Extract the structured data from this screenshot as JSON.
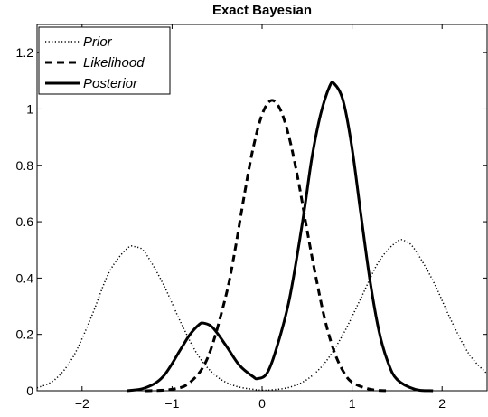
{
  "chart_data": {
    "type": "line",
    "title": "Exact Bayesian",
    "xlabel": "",
    "ylabel": "",
    "xlim": [
      -2.5,
      2.5
    ],
    "ylim": [
      0,
      1.3
    ],
    "x_ticks": [
      -2,
      -1,
      0,
      1,
      2
    ],
    "x_tick_labels": [
      "−2",
      "−1",
      "0",
      "1",
      "2"
    ],
    "y_ticks": [
      0,
      0.2,
      0.4,
      0.6,
      0.8,
      1,
      1.2
    ],
    "y_tick_labels": [
      "0",
      "0.2",
      "0.4",
      "0.6",
      "0.8",
      "1",
      "1.2"
    ],
    "grid": false,
    "legend_position": "top-left",
    "series": [
      {
        "name": "Prior",
        "style": "dotted",
        "color": "#000000",
        "points": [
          [
            -2.5,
            0.01
          ],
          [
            -2.3,
            0.04
          ],
          [
            -2.1,
            0.12
          ],
          [
            -1.9,
            0.26
          ],
          [
            -1.7,
            0.42
          ],
          [
            -1.5,
            0.505
          ],
          [
            -1.4,
            0.51
          ],
          [
            -1.3,
            0.49
          ],
          [
            -1.1,
            0.38
          ],
          [
            -0.9,
            0.24
          ],
          [
            -0.7,
            0.12
          ],
          [
            -0.5,
            0.05
          ],
          [
            -0.3,
            0.017
          ],
          [
            -0.1,
            0.005
          ],
          [
            0.0,
            0.002
          ],
          [
            0.1,
            0.003
          ],
          [
            0.3,
            0.012
          ],
          [
            0.5,
            0.04
          ],
          [
            0.7,
            0.1
          ],
          [
            0.9,
            0.2
          ],
          [
            1.1,
            0.33
          ],
          [
            1.3,
            0.46
          ],
          [
            1.5,
            0.53
          ],
          [
            1.6,
            0.53
          ],
          [
            1.7,
            0.5
          ],
          [
            1.9,
            0.39
          ],
          [
            2.1,
            0.25
          ],
          [
            2.3,
            0.13
          ],
          [
            2.5,
            0.06
          ]
        ]
      },
      {
        "name": "Likelihood",
        "style": "dashed",
        "color": "#000000",
        "points": [
          [
            -1.3,
            0.0
          ],
          [
            -1.0,
            0.005
          ],
          [
            -0.8,
            0.03
          ],
          [
            -0.6,
            0.12
          ],
          [
            -0.4,
            0.34
          ],
          [
            -0.3,
            0.5
          ],
          [
            -0.2,
            0.69
          ],
          [
            -0.1,
            0.86
          ],
          [
            0.0,
            0.98
          ],
          [
            0.1,
            1.03
          ],
          [
            0.2,
            1.0
          ],
          [
            0.3,
            0.9
          ],
          [
            0.4,
            0.75
          ],
          [
            0.5,
            0.57
          ],
          [
            0.6,
            0.4
          ],
          [
            0.7,
            0.25
          ],
          [
            0.8,
            0.14
          ],
          [
            0.9,
            0.07
          ],
          [
            1.0,
            0.03
          ],
          [
            1.2,
            0.005
          ],
          [
            1.4,
            0.0
          ]
        ]
      },
      {
        "name": "Posterior",
        "style": "solid",
        "color": "#000000",
        "points": [
          [
            -1.5,
            0.0
          ],
          [
            -1.3,
            0.01
          ],
          [
            -1.1,
            0.05
          ],
          [
            -0.9,
            0.15
          ],
          [
            -0.8,
            0.2
          ],
          [
            -0.7,
            0.235
          ],
          [
            -0.65,
            0.24
          ],
          [
            -0.55,
            0.225
          ],
          [
            -0.4,
            0.16
          ],
          [
            -0.25,
            0.09
          ],
          [
            -0.1,
            0.05
          ],
          [
            -0.05,
            0.043
          ],
          [
            0.05,
            0.06
          ],
          [
            0.15,
            0.14
          ],
          [
            0.3,
            0.32
          ],
          [
            0.45,
            0.6
          ],
          [
            0.55,
            0.82
          ],
          [
            0.65,
            0.98
          ],
          [
            0.75,
            1.08
          ],
          [
            0.8,
            1.09
          ],
          [
            0.9,
            1.03
          ],
          [
            1.0,
            0.86
          ],
          [
            1.1,
            0.62
          ],
          [
            1.2,
            0.39
          ],
          [
            1.3,
            0.21
          ],
          [
            1.4,
            0.1
          ],
          [
            1.5,
            0.04
          ],
          [
            1.7,
            0.005
          ],
          [
            1.9,
            0.0
          ]
        ]
      }
    ]
  }
}
